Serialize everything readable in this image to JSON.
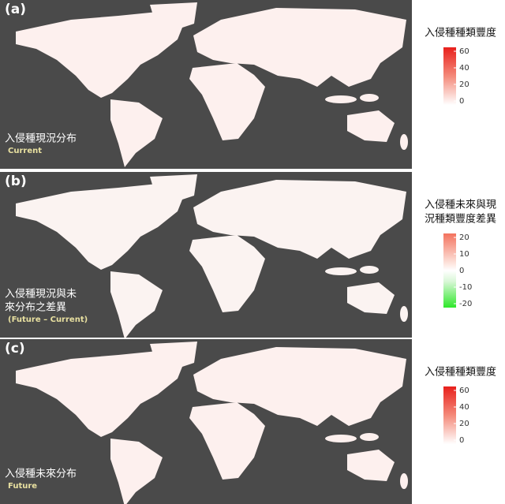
{
  "panels": [
    {
      "tag": "(a)",
      "label": [
        "入侵種現況分布"
      ],
      "sublabel": "Current",
      "legend": {
        "title": [
          "入侵種種類豐度"
        ],
        "ticks": [
          60,
          40,
          20,
          0
        ]
      }
    },
    {
      "tag": "(b)",
      "label": [
        "入侵種現況與未",
        "來分布之差異"
      ],
      "sublabel": "(Future – Current)",
      "legend": {
        "title": [
          "入侵種未來與現",
          "況種類豐度差異"
        ],
        "ticks": [
          20,
          10,
          0,
          -10,
          -20
        ]
      }
    },
    {
      "tag": "(c)",
      "label": [
        "入侵種未來分布"
      ],
      "sublabel": "Future",
      "legend": {
        "title": [
          "入侵種種類豐度"
        ],
        "ticks": [
          60,
          40,
          20,
          0
        ]
      }
    }
  ]
}
